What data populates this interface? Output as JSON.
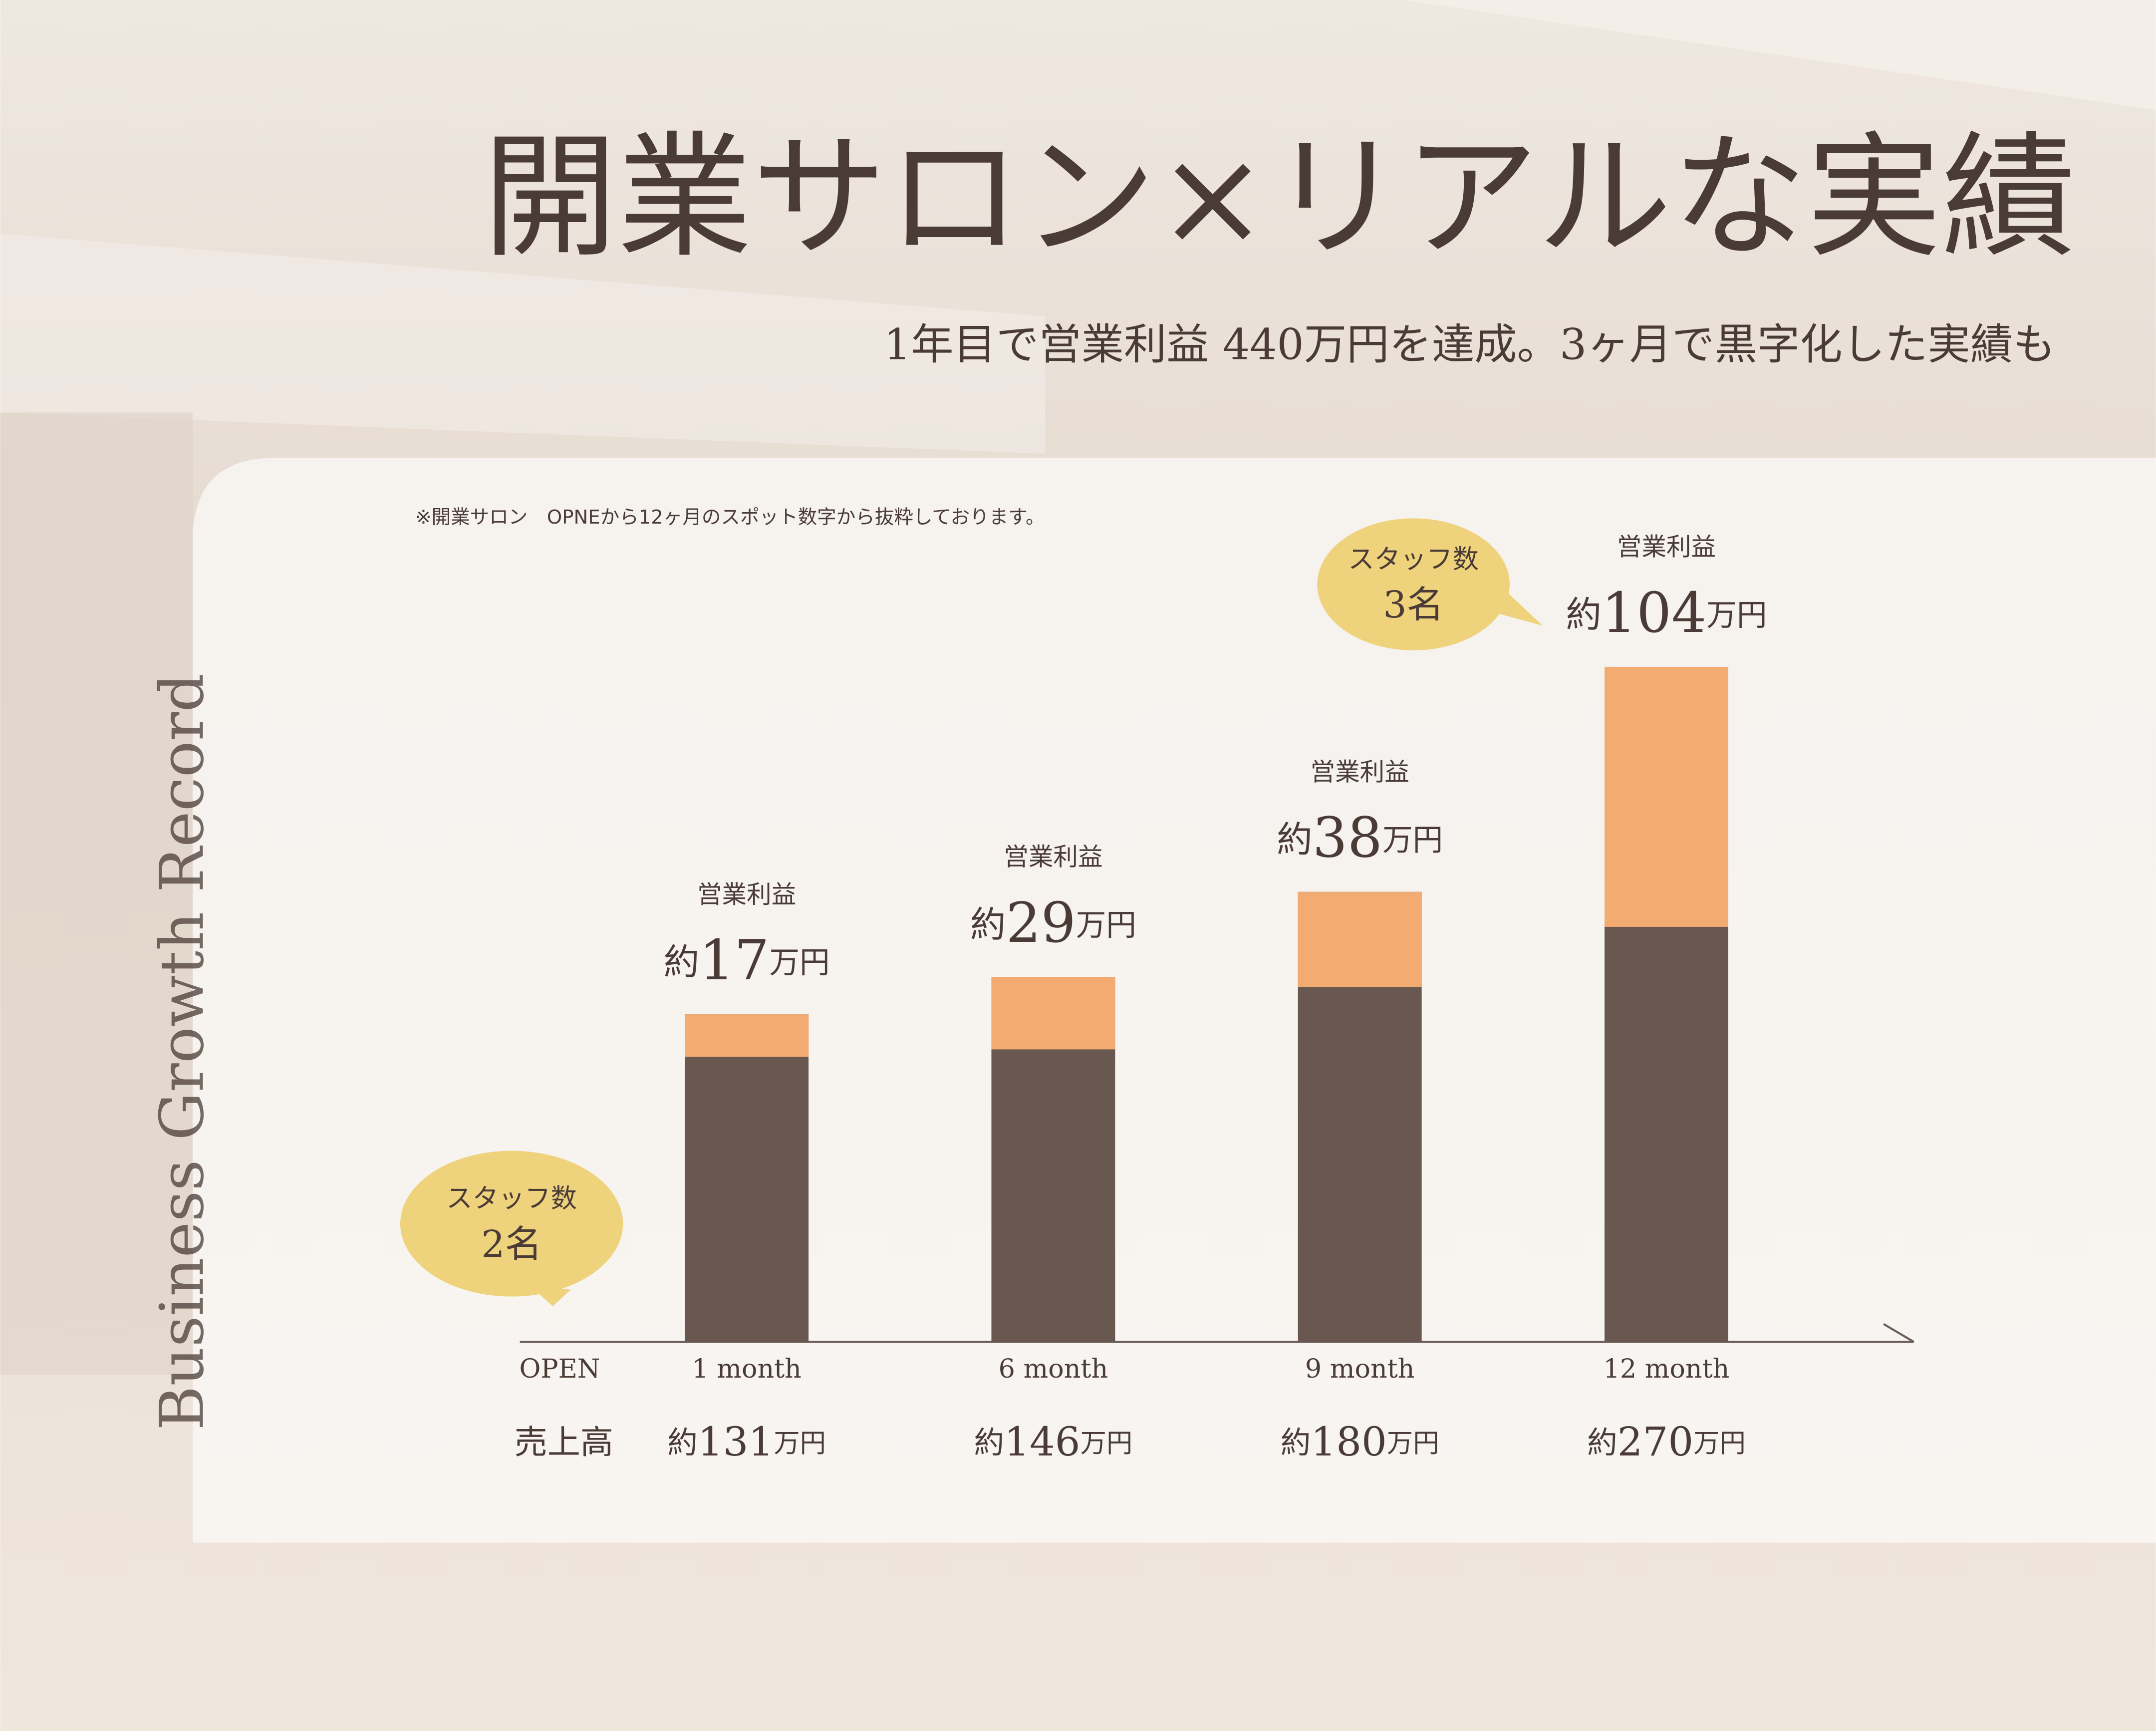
{
  "title": "開業サロン×リアルな実績",
  "subtitle": "1年目で営業利益 440万円を達成。3ヶ月で黒字化した実績も",
  "side_text": "Business Growth Record",
  "chart_data": {
    "type": "bar",
    "stacked": true,
    "note": "※開業サロン　OPNEから12ヶ月のスポット数字から抜粋しております。",
    "origin_label": "OPEN",
    "categories": [
      "1 month",
      "6 month",
      "9 month",
      "12 month"
    ],
    "value_prefix": "約",
    "value_unit": "万円",
    "series": [
      {
        "name": "売上高",
        "color": "#695850",
        "values": [
          131,
          146,
          180,
          270
        ]
      },
      {
        "name": "営業利益",
        "color": "#f2ab70",
        "values": [
          17,
          29,
          38,
          104
        ]
      }
    ],
    "annotations": [
      {
        "label": "スタッフ数",
        "text": "2名",
        "color": "#eed27c"
      },
      {
        "label": "スタッフ数",
        "text": "3名",
        "color": "#eed27c"
      }
    ]
  }
}
